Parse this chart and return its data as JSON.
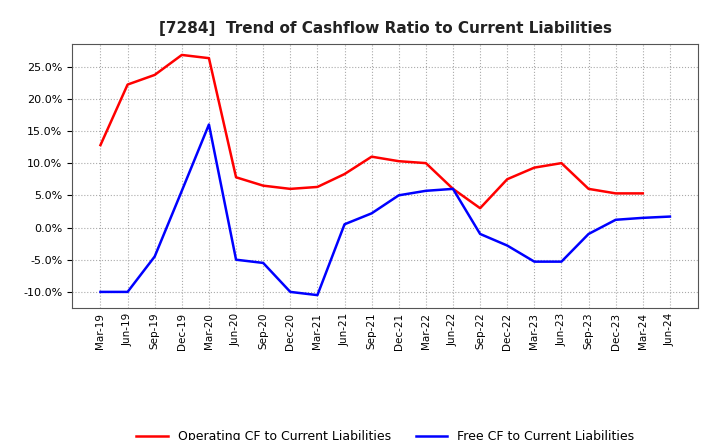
{
  "title": "[7284]  Trend of Cashflow Ratio to Current Liabilities",
  "x_labels": [
    "Mar-19",
    "Jun-19",
    "Sep-19",
    "Dec-19",
    "Mar-20",
    "Jun-20",
    "Sep-20",
    "Dec-20",
    "Mar-21",
    "Jun-21",
    "Sep-21",
    "Dec-21",
    "Mar-22",
    "Jun-22",
    "Sep-22",
    "Dec-22",
    "Mar-23",
    "Jun-23",
    "Sep-23",
    "Dec-23",
    "Mar-24",
    "Jun-24"
  ],
  "operating_cf": [
    0.128,
    0.222,
    0.237,
    0.268,
    0.263,
    0.078,
    0.065,
    0.06,
    0.063,
    0.083,
    0.11,
    0.103,
    0.1,
    0.06,
    0.03,
    0.075,
    0.093,
    0.1,
    0.06,
    0.053,
    0.053,
    null
  ],
  "free_cf": [
    -0.1,
    -0.1,
    -0.045,
    0.057,
    0.16,
    -0.05,
    -0.055,
    -0.1,
    -0.105,
    0.005,
    0.022,
    0.05,
    0.057,
    0.06,
    -0.01,
    -0.028,
    -0.053,
    -0.053,
    -0.01,
    0.012,
    0.015,
    0.017
  ],
  "operating_color": "#ff0000",
  "free_color": "#0000ff",
  "ylim": [
    -0.125,
    0.285
  ],
  "yticks": [
    -0.1,
    -0.05,
    0.0,
    0.05,
    0.1,
    0.15,
    0.2,
    0.25
  ],
  "background_color": "#ffffff",
  "plot_bg_color": "#ffffff",
  "grid_color": "#aaaaaa",
  "legend_op": "Operating CF to Current Liabilities",
  "legend_free": "Free CF to Current Liabilities"
}
